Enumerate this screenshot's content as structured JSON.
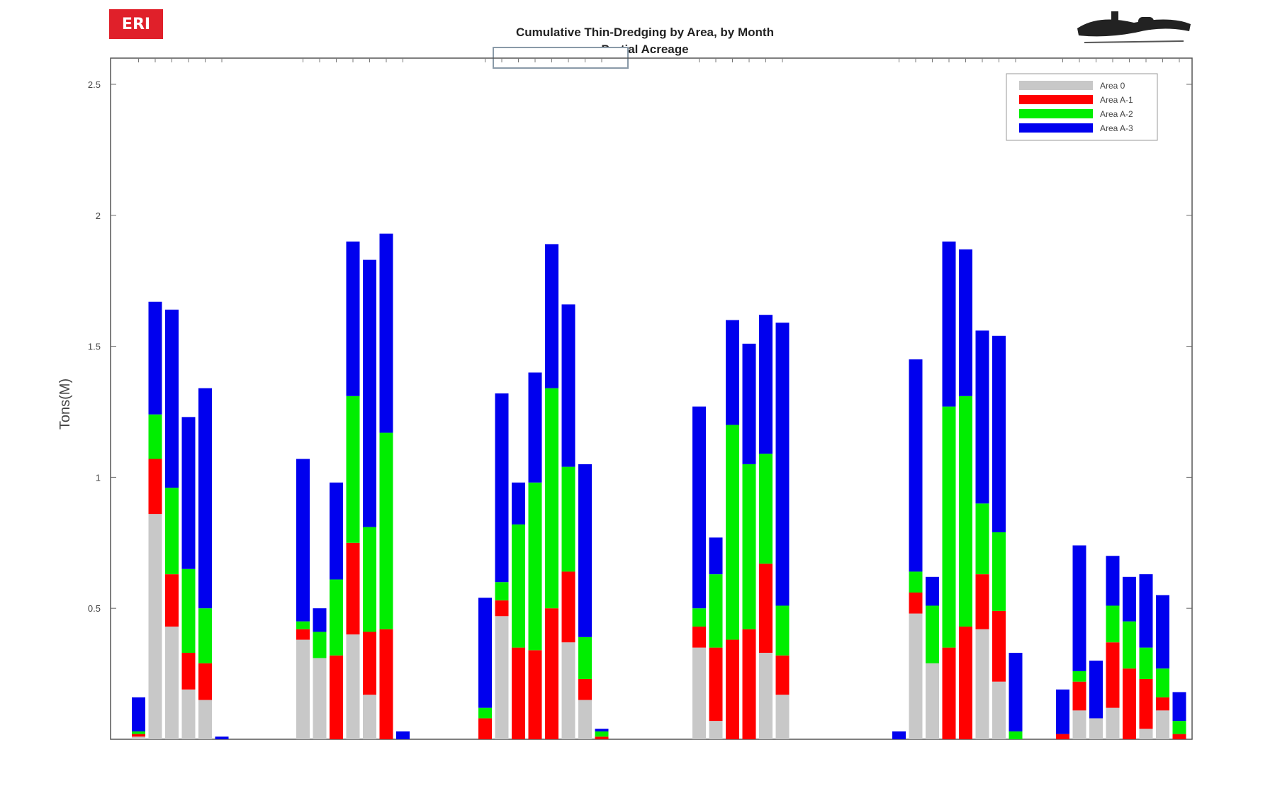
{
  "header": {
    "logo_left_text": "ERI",
    "title_line1": "Cumulative Thin-Dredging by Area, by Month",
    "title_line2": "Partial Acreage"
  },
  "colors": {
    "area_0": "#c8c8c8",
    "area_1": "#ff0000",
    "area_2": "#00ee00",
    "area_3": "#0000ee"
  },
  "chart_data": {
    "type": "bar",
    "stacked": true,
    "ylabel": "Tons(M)",
    "ylim": [
      0,
      2.6
    ],
    "yticks": [
      0.5,
      1,
      1.5,
      2,
      2.5
    ],
    "ytick_labels": [
      "0.5",
      "1",
      "1.5",
      "2",
      "2.5"
    ],
    "legend": {
      "position": "top-right",
      "entries": [
        "Area 0",
        "Area A-1",
        "Area A-2",
        "Area A-3"
      ]
    },
    "groups": [
      {
        "bars": [
          [
            0.01,
            0.01,
            0.01,
            0.13
          ],
          [
            0.86,
            0.21,
            0.17,
            0.43
          ],
          [
            0.43,
            0.2,
            0.33,
            0.68
          ],
          [
            0.19,
            0.14,
            0.32,
            0.58
          ],
          [
            0.15,
            0.14,
            0.21,
            0.84
          ],
          [
            0,
            0,
            0,
            0.01
          ]
        ]
      },
      {
        "bars": [
          [
            0.38,
            0.04,
            0.03,
            0.62
          ],
          [
            0.31,
            0.0,
            0.1,
            0.09
          ],
          [
            0,
            0.32,
            0.29,
            0.37
          ],
          [
            0.4,
            0.35,
            0.56,
            0.59
          ],
          [
            0.17,
            0.24,
            0.4,
            1.02
          ],
          [
            0,
            0.42,
            0.75,
            0.76
          ],
          [
            0,
            0,
            0,
            0.03
          ]
        ]
      },
      {
        "bars": [
          [
            0,
            0.08,
            0.04,
            0.42
          ],
          [
            0.47,
            0.06,
            0.07,
            0.72
          ],
          [
            0,
            0.35,
            0.47,
            0.16
          ],
          [
            0,
            0.34,
            0.64,
            0.42
          ],
          [
            0,
            0.5,
            0.84,
            0.55
          ],
          [
            0.37,
            0.27,
            0.4,
            0.62
          ],
          [
            0.15,
            0.08,
            0.16,
            0.66
          ],
          [
            0,
            0.01,
            0.02,
            0.01
          ]
        ]
      },
      {
        "bars": [
          [
            0.35,
            0.08,
            0.07,
            0.77
          ],
          [
            0.07,
            0.28,
            0.28,
            0.14
          ],
          [
            0,
            0.38,
            0.82,
            0.4
          ],
          [
            0,
            0.42,
            0.63,
            0.46
          ],
          [
            0.33,
            0.34,
            0.42,
            0.53
          ],
          [
            0.17,
            0.15,
            0.19,
            1.08
          ]
        ]
      },
      {
        "bars": [
          [
            0,
            0,
            0,
            0.03
          ],
          [
            0.48,
            0.08,
            0.08,
            0.81
          ],
          [
            0.29,
            0.0,
            0.22,
            0.11
          ],
          [
            0,
            0.35,
            0.92,
            0.63
          ],
          [
            0,
            0.43,
            0.88,
            0.56
          ],
          [
            0.42,
            0.21,
            0.27,
            0.66
          ],
          [
            0.22,
            0.27,
            0.3,
            0.75
          ],
          [
            0,
            0,
            0.03,
            0.3
          ]
        ]
      },
      {
        "bars": [
          [
            0.0,
            0.02,
            0.0,
            0.17
          ],
          [
            0.11,
            0.11,
            0.04,
            0.48
          ],
          [
            0.08,
            0.0,
            0.0,
            0.22
          ],
          [
            0.12,
            0.25,
            0.14,
            0.19
          ],
          [
            0.0,
            0.27,
            0.18,
            0.17
          ],
          [
            0.04,
            0.19,
            0.12,
            0.28
          ],
          [
            0.11,
            0.05,
            0.11,
            0.28
          ],
          [
            0.0,
            0.02,
            0.05,
            0.11
          ]
        ]
      }
    ]
  }
}
